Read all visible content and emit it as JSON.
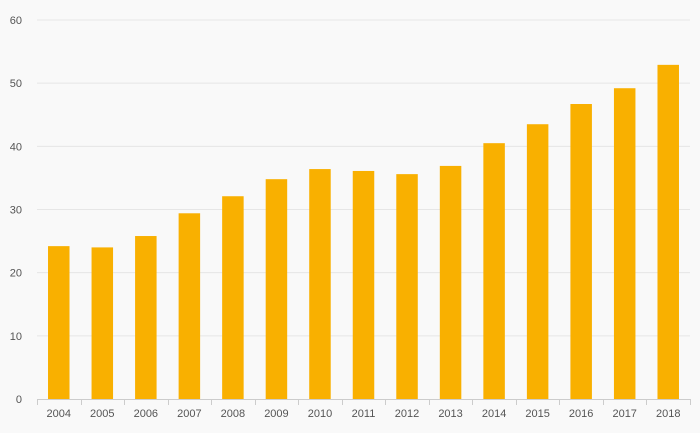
{
  "chart_data": {
    "type": "bar",
    "categories": [
      "2004",
      "2005",
      "2006",
      "2007",
      "2008",
      "2009",
      "2010",
      "2011",
      "2012",
      "2013",
      "2014",
      "2015",
      "2016",
      "2017",
      "2018"
    ],
    "values": [
      24.2,
      24.0,
      25.8,
      29.4,
      32.1,
      34.8,
      36.4,
      36.1,
      35.6,
      36.9,
      40.5,
      43.5,
      46.7,
      49.2,
      52.9
    ],
    "title": "",
    "xlabel": "",
    "ylabel": "",
    "ylim": [
      0,
      60
    ],
    "yticks": [
      0,
      10,
      20,
      30,
      40,
      50,
      60
    ],
    "grid": true,
    "legend": "none",
    "colors": {
      "bar": "#f9b000",
      "grid": "#e6e6e6",
      "axis": "#cccccc",
      "text": "#555555",
      "background": "#f9f9f9"
    }
  }
}
